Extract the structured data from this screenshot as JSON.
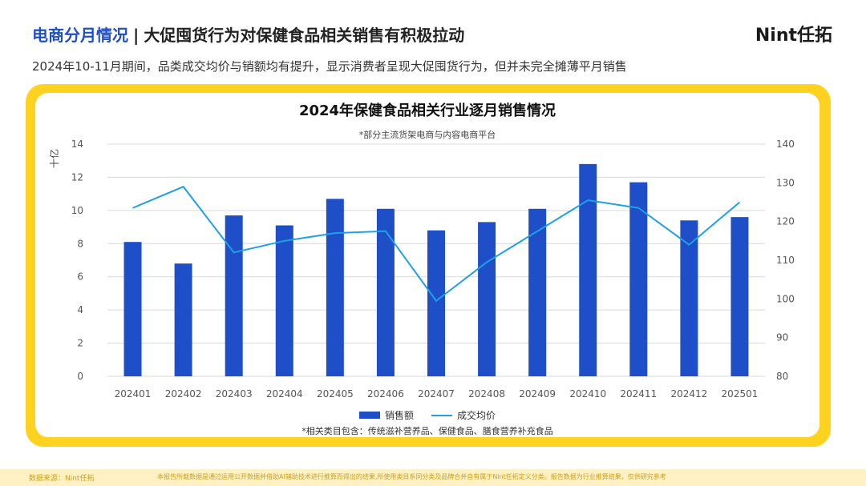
{
  "header": {
    "title_accent": "电商分月情况",
    "separator": "|",
    "title_main": "大促囤货行为对保健食品相关销售有积极拉动",
    "logo": "Nint任拓",
    "subtitle": "2024年10-11月期间，品类成交均价与销额均有提升，显示消费者呈现大促囤货行为，但并未完全摊薄平月销售"
  },
  "chart_data": {
    "type": "bar",
    "title": "2024年保健食品相关行业逐月销售情况",
    "note": "*部分主流货架电商与内容电商平台",
    "y_left_label": "十亿",
    "categories": [
      "202401",
      "202402",
      "202403",
      "202404",
      "202405",
      "202406",
      "202407",
      "202408",
      "202409",
      "202410",
      "202411",
      "202412",
      "202501"
    ],
    "series": [
      {
        "name": "销售额",
        "kind": "bar",
        "axis": "left",
        "color": "#1f4fc8",
        "values": [
          8.1,
          6.8,
          9.7,
          9.1,
          10.7,
          10.1,
          8.8,
          9.3,
          10.1,
          12.8,
          11.7,
          9.4,
          9.6
        ]
      },
      {
        "name": "成交均价",
        "kind": "line",
        "axis": "right",
        "color": "#1ea0e6",
        "values": [
          123.5,
          129,
          112,
          115,
          117,
          117.5,
          99.5,
          109.5,
          117.5,
          125.5,
          123.5,
          114,
          125
        ]
      }
    ],
    "y_left": {
      "min": 0,
      "max": 14,
      "ticks": [
        0,
        2,
        4,
        6,
        8,
        10,
        12,
        14
      ]
    },
    "y_right": {
      "min": 80,
      "max": 140,
      "ticks": [
        80,
        90,
        100,
        110,
        120,
        130,
        140
      ]
    },
    "grid": true,
    "legend": "bottom",
    "footnote": "*相关类目包含：传统滋补营养品、保健食品、膳食营养补充食品"
  },
  "footer": {
    "source": "数据来源：Nint任拓",
    "disclaimer": "本报告所载数据是通过运用公开数据并借助AI辅助技术进行推算而得出的结果,所使用类目系同分类及品牌合并自有属于Nint任拓定义分类。报告数据为行业推算结果，仅供研究参考"
  }
}
